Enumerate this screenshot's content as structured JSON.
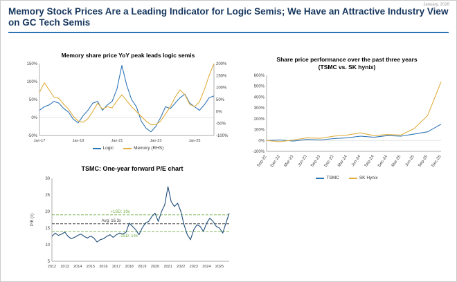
{
  "meta": {
    "date_label": "January, 2026"
  },
  "header": {
    "title": "Memory Stock Prices Are a Leading Indicator for Logic Semis; We Have an Attractive Industry View on GC Tech Semis"
  },
  "colors": {
    "title_navy": "#17375E",
    "rule_blue": "#2E74B5",
    "logic_blue": "#2E75B6",
    "memory_gold": "#E0AE3C",
    "pe_navy": "#1F4E79",
    "sd_green": "#70AD47",
    "avg_gray": "#404040"
  },
  "chart_data": [
    {
      "type": "line",
      "title": "Memory share price YoY peak leads logic semis",
      "x_labels": [
        "Jan-17",
        "Jan-19",
        "Jan-21",
        "Jan-23",
        "Jan-25"
      ],
      "x_tick_idx": [
        0,
        8,
        16,
        24,
        32
      ],
      "y_suffix": "%",
      "ylim_left": [
        -50,
        150
      ],
      "yticks_left": [
        -50,
        0,
        50,
        100,
        150
      ],
      "ylim_right": [
        -100,
        200
      ],
      "yticks_right": [
        -100,
        -50,
        0,
        50,
        100,
        150,
        200
      ],
      "legend_position": "bottom",
      "series": [
        {
          "name": "Logic",
          "axis": "left",
          "color": "#2E75B6",
          "values": [
            20,
            30,
            35,
            45,
            40,
            25,
            15,
            -5,
            -15,
            5,
            20,
            40,
            45,
            20,
            35,
            45,
            80,
            145,
            90,
            50,
            30,
            -10,
            -30,
            -40,
            -25,
            0,
            30,
            25,
            40,
            55,
            65,
            40,
            30,
            20,
            35,
            55,
            60
          ]
        },
        {
          "name": "Memory (RHS)",
          "axis": "right",
          "color": "#E0AE3C",
          "values": [
            80,
            120,
            90,
            60,
            55,
            30,
            10,
            -20,
            -40,
            -45,
            -30,
            0,
            35,
            10,
            20,
            15,
            45,
            70,
            45,
            20,
            0,
            -20,
            -40,
            -55,
            -55,
            -40,
            -10,
            20,
            60,
            90,
            70,
            30,
            20,
            40,
            90,
            150,
            200
          ]
        }
      ]
    },
    {
      "type": "line",
      "title": "Share price performance over the past three years",
      "subtitle": "(TSMC vs. SK hynix)",
      "x_labels": [
        "Sep-22",
        "Dec-22",
        "Mar-23",
        "Jun-23",
        "Sep-23",
        "Dec-23",
        "Mar-24",
        "Jun-24",
        "Sep-24",
        "Dec-24",
        "Mar-25",
        "Jun-25",
        "Sep-25",
        "Dec-25"
      ],
      "x_tick_idx": [
        0,
        1,
        2,
        3,
        4,
        5,
        6,
        7,
        8,
        9,
        10,
        11,
        12,
        13
      ],
      "rotate_x": true,
      "y_suffix": "%",
      "ylim_left": [
        -100,
        600
      ],
      "yticks_left": [
        -100,
        0,
        100,
        200,
        300,
        400,
        500,
        600
      ],
      "legend_position": "bottom",
      "series": [
        {
          "name": "TSMC",
          "axis": "left",
          "color": "#2E75B6",
          "values": [
            0,
            5,
            -5,
            10,
            5,
            18,
            25,
            40,
            30,
            45,
            40,
            60,
            80,
            150
          ]
        },
        {
          "name": "SK Hynix",
          "axis": "left",
          "color": "#E0AE3C",
          "values": [
            0,
            -10,
            5,
            25,
            20,
            40,
            50,
            70,
            45,
            55,
            50,
            110,
            230,
            540
          ]
        }
      ]
    },
    {
      "type": "line",
      "title": "TSMC: One-year forward P/E chart",
      "ylabel": "P/E (x)",
      "x_labels": [
        "2012",
        "2013",
        "2014",
        "2015",
        "2016",
        "2017",
        "2018",
        "2019",
        "2020",
        "2021",
        "2022",
        "2023",
        "2024",
        "2025"
      ],
      "x_tick_idx": [
        0,
        4,
        8,
        12,
        16,
        20,
        24,
        28,
        32,
        36,
        40,
        44,
        48,
        52
      ],
      "y_suffix": "",
      "ylim_left": [
        5,
        30
      ],
      "yticks_left": [
        5,
        10,
        15,
        20,
        25,
        30
      ],
      "ref_lines": [
        {
          "label": "+1SD: 19x",
          "value": 19,
          "color": "#70AD47",
          "label_x": 0.33
        },
        {
          "label": "Avg: 16.3x",
          "value": 16.3,
          "color": "#404040",
          "label_x": 0.28
        },
        {
          "label": "-1SD: 14x",
          "value": 14,
          "color": "#70AD47",
          "label_x": 0.38,
          "below": true
        }
      ],
      "series": [
        {
          "name": "TSMC forward P/E",
          "axis": "left",
          "color": "#1F4E79",
          "values": [
            12.5,
            13.5,
            12.8,
            13.2,
            13.8,
            12.5,
            11.8,
            12.2,
            12.8,
            13.2,
            12.5,
            12.0,
            12.6,
            12.0,
            10.8,
            11.5,
            11.8,
            12.5,
            13.0,
            12.2,
            13.0,
            13.5,
            13.2,
            13.8,
            16.5,
            15.5,
            14.5,
            13.0,
            15.0,
            16.5,
            17.0,
            18.5,
            19.5,
            17.0,
            20.0,
            22.0,
            27.5,
            23.0,
            21.5,
            22.5,
            20.0,
            16.0,
            13.0,
            11.5,
            14.5,
            16.0,
            15.5,
            14.0,
            16.5,
            18.0,
            17.0,
            15.5,
            15.0,
            13.5,
            16.5,
            19.5
          ]
        }
      ]
    }
  ]
}
